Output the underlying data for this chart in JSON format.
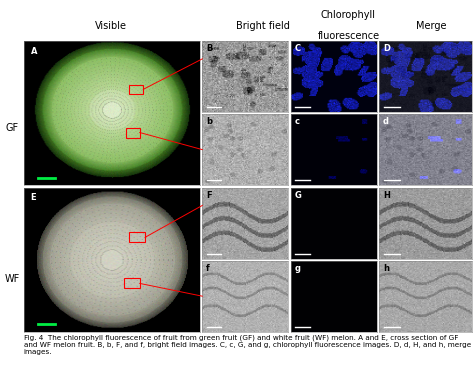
{
  "title_visible": "Visible",
  "title_bright": "Bright field",
  "title_chloro": "Chlorophyll\nfluorescence",
  "title_merge": "Merge",
  "label_gf": "GF",
  "label_wf": "WF",
  "caption": "Fig. 4  The chlorophyll fluorescence of fruit from green fruit (GF) and white fruit (WF) melon. A and E, cross section of GF and WF melon fruit. B, b, F, and f, bright field images. C, c, G, and g, chlorophyll fluorescence images. D, d, H, and h, merge images.",
  "caption_fontsize": 5.2,
  "gf_outer_color": "#2a4a18",
  "gf_rind_color": "#6aaa30",
  "gf_flesh_color": "#c8e0a0",
  "gf_core_color": "#e0ecc8",
  "wf_outer_color": "#606050",
  "wf_rind_color": "#a8a898",
  "wf_flesh_color": "#c8c8b8",
  "wf_core_color": "#d5d5c5",
  "scale_bar_color": "#00ee44",
  "panel_B_bg": "#a0a0a0",
  "panel_C_bg": "#000818",
  "panel_D_bg": "#080820",
  "panel_b_bg": "#b8b8b8",
  "panel_c_bg": "#010310",
  "panel_d_bg": "#181828",
  "panel_F_bg": "#a8a8a0",
  "panel_G_bg": "#010205",
  "panel_H_bg": "#a5a5a0",
  "panel_f_bg": "#b5b5ad",
  "panel_g_bg": "#010205",
  "panel_h_bg": "#b5b5ad"
}
